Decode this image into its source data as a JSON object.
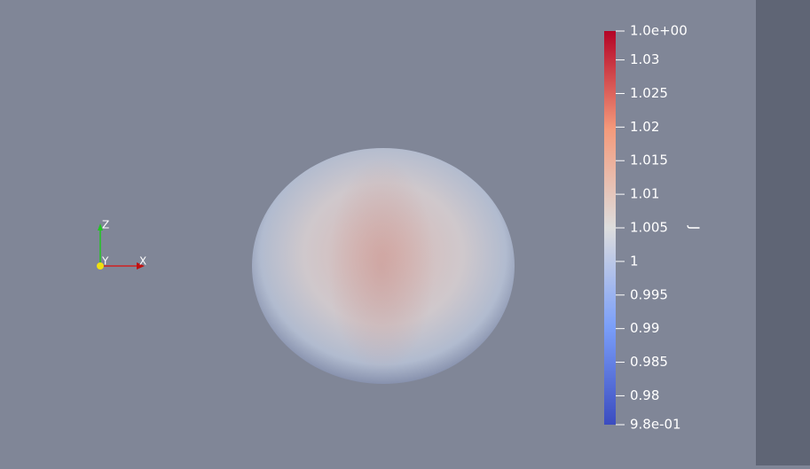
{
  "viewport": {
    "axes_labels": {
      "x": "X",
      "y": "Y",
      "z": "Z"
    },
    "colorbar": {
      "title": "J",
      "range": [
        {
          "value": 0.9757,
          "label": "9.8e-01"
        },
        {
          "value": 1.0343,
          "label": "1.0e+00"
        }
      ],
      "ticks": [
        0.98,
        0.985,
        0.99,
        0.995,
        1,
        1.005,
        1.01,
        1.015,
        1.02,
        1.025,
        1.03
      ]
    }
  }
}
